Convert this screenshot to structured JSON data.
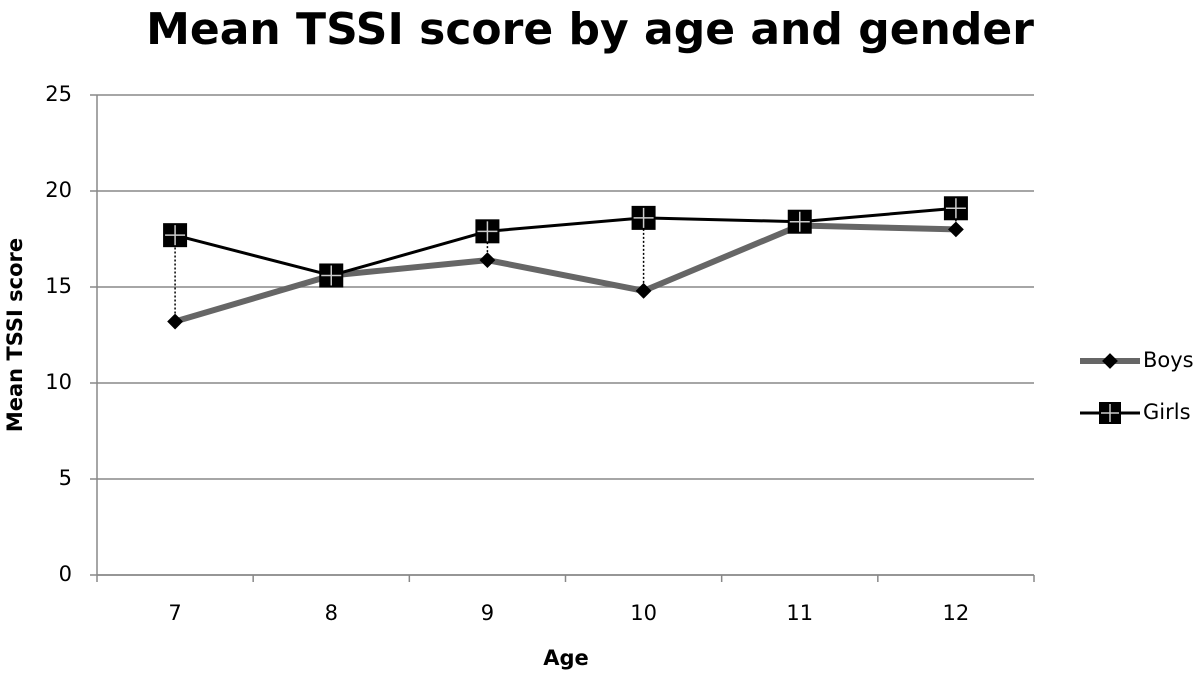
{
  "chart_data": {
    "type": "line",
    "title": "Mean TSSI score by age and gender",
    "x_label": "Age",
    "y_label": "Mean TSSI score",
    "categories": [
      "7",
      "8",
      "9",
      "10",
      "11",
      "12"
    ],
    "series": [
      {
        "name": "Boys",
        "color": "#666666",
        "marker": "diamond",
        "values": [
          13.2,
          15.6,
          16.4,
          14.8,
          18.2,
          18.0
        ]
      },
      {
        "name": "Girls",
        "color": "#000000",
        "marker": "square",
        "values": [
          17.7,
          15.6,
          17.9,
          18.6,
          18.4,
          19.1
        ]
      }
    ],
    "ylim": [
      0,
      25
    ],
    "yticks": [
      0,
      5,
      10,
      15,
      20,
      25
    ],
    "grid": true,
    "high_low_lines": true,
    "legend": "right"
  }
}
